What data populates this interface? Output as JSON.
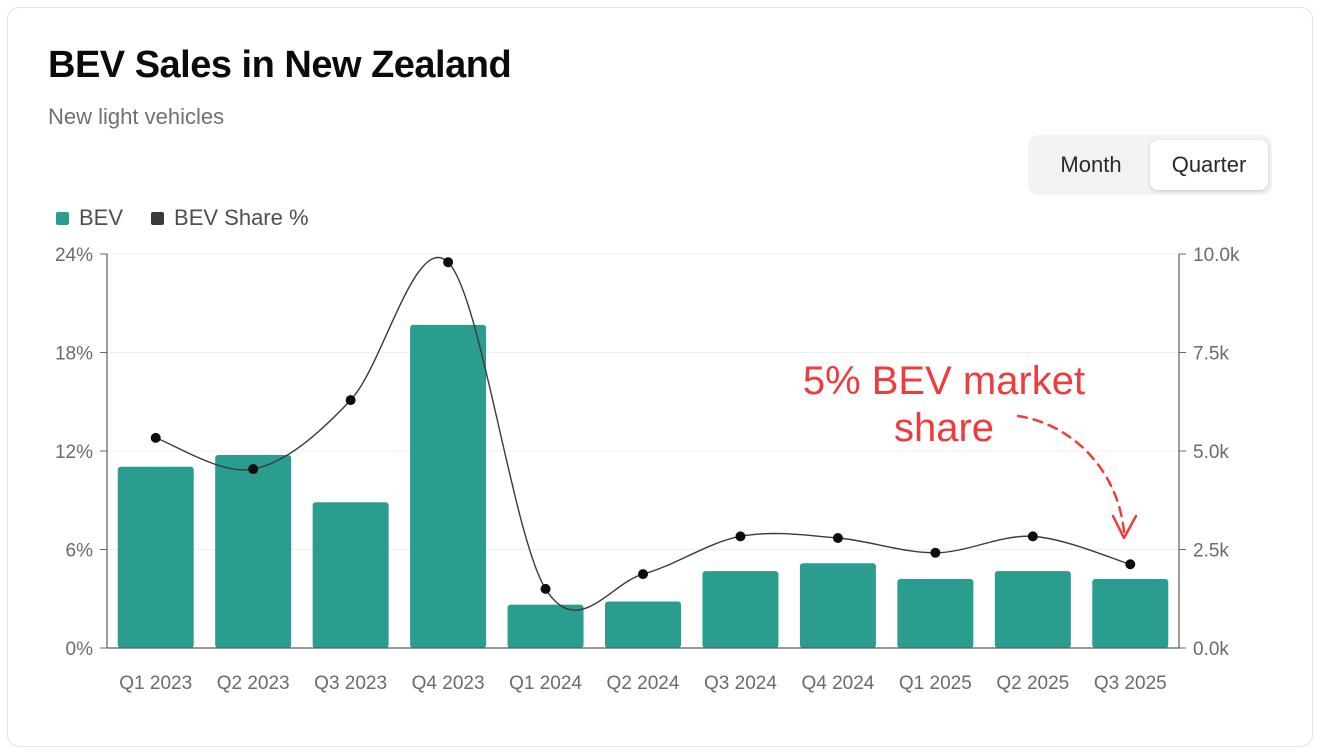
{
  "header": {
    "title": "BEV Sales in New Zealand",
    "subtitle": "New light vehicles"
  },
  "toggle": {
    "options": [
      "Month",
      "Quarter"
    ],
    "selected": "Quarter"
  },
  "legend": [
    {
      "label": "BEV",
      "color": "#2a9d8f"
    },
    {
      "label": "BEV Share %",
      "color": "#3a3a3a"
    }
  ],
  "annotation": {
    "line1": "5% BEV market",
    "line2": "share",
    "color": "#ef3b3b"
  },
  "chart_data": {
    "type": "bar",
    "title": "BEV Sales in New Zealand",
    "subtitle": "New light vehicles",
    "categories": [
      "Q1 2023",
      "Q2 2023",
      "Q3 2023",
      "Q4 2023",
      "Q1 2024",
      "Q2 2024",
      "Q3 2024",
      "Q4 2024",
      "Q1 2025",
      "Q2 2025",
      "Q3 2025"
    ],
    "series": [
      {
        "name": "BEV",
        "type": "bar",
        "axis": "right",
        "color": "#2a9d8f",
        "values": [
          4600,
          4900,
          3700,
          8200,
          1100,
          1180,
          1950,
          2150,
          1750,
          1950,
          1750
        ]
      },
      {
        "name": "BEV Share %",
        "type": "line",
        "axis": "left",
        "color": "#3a3a3a",
        "values": [
          12.8,
          10.9,
          15.1,
          23.5,
          3.6,
          4.5,
          6.8,
          6.7,
          5.8,
          6.8,
          5.1
        ]
      }
    ],
    "left_axis": {
      "ticks": [
        "0%",
        "6%",
        "12%",
        "18%",
        "24%"
      ],
      "range": [
        0,
        24
      ]
    },
    "right_axis": {
      "ticks": [
        "0.0k",
        "2.5k",
        "5.0k",
        "7.5k",
        "10.0k"
      ],
      "range": [
        0,
        10000
      ]
    },
    "grid": true,
    "legend_position": "top-left"
  }
}
